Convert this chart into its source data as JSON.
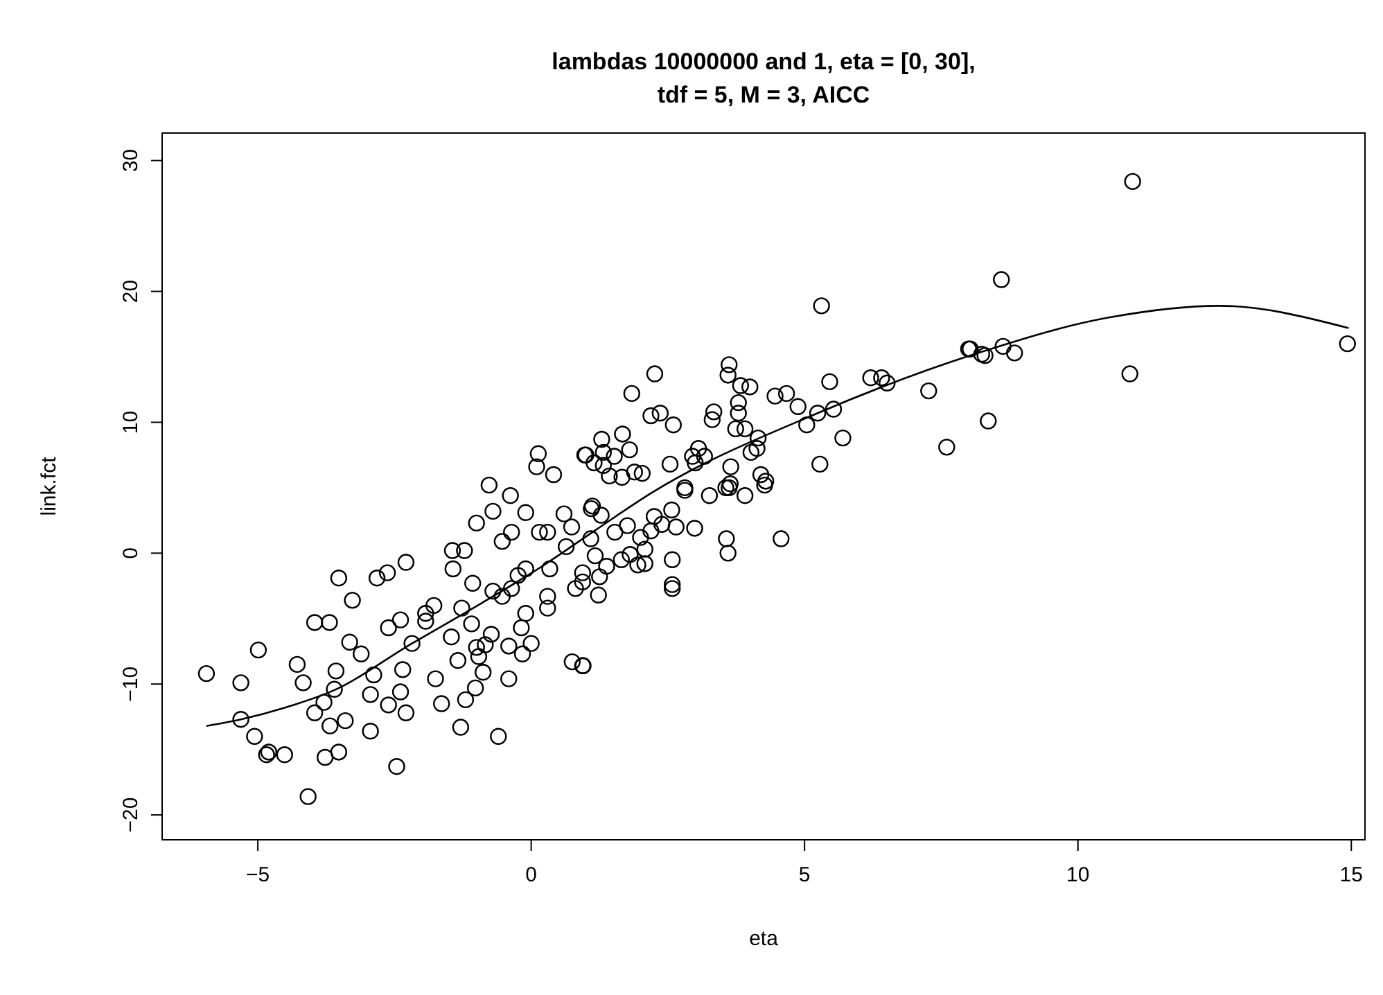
{
  "chart_data": {
    "type": "scatter",
    "title": "lambdas 10000000 and 1, eta = [0, 30],\ntdf = 5, M = 3, AICC",
    "xlabel": "eta",
    "ylabel": "link.fct",
    "xlim": [
      -6.75,
      15.25
    ],
    "ylim": [
      -21.9,
      32.1
    ],
    "xticks": [
      -5,
      0,
      5,
      10,
      15
    ],
    "yticks": [
      -20,
      -10,
      0,
      10,
      20,
      30
    ],
    "series": [
      {
        "marker": "circle",
        "color": "#000000",
        "x": [
          -5.94,
          -5.31,
          -5.31,
          -4.99,
          -5.06,
          -4.84,
          -4.8,
          -4.51,
          -4.08,
          -4.28,
          -4.17,
          -3.52,
          -3.27,
          -3.96,
          -3.69,
          -3.57,
          -3.32,
          -3.11,
          -3.6,
          -3.79,
          -3.96,
          -3.68,
          -3.4,
          -3.77,
          -3.52,
          -2.94,
          -2.46,
          -2.88,
          -2.94,
          -2.61,
          -2.35,
          -2.39,
          -2.29,
          -2.82,
          -2.63,
          -2.29,
          -2.61,
          -2.39,
          -2.18,
          -1.93,
          -1.78,
          -1.93,
          -1.75,
          -1.64,
          -1.43,
          -1.44,
          -1.22,
          -1.0,
          -1.27,
          -1.46,
          -1.34,
          -1.29,
          -1.2,
          -1.07,
          -1.09,
          -1.0,
          -0.96,
          -0.88,
          -1.02,
          -0.73,
          -0.84,
          -0.6,
          -0.41,
          -0.41,
          -0.16,
          0.0,
          -0.18,
          -0.1,
          -0.7,
          -0.53,
          -0.36,
          -0.24,
          -0.1,
          0.3,
          0.3,
          0.34,
          0.75,
          0.94,
          0.64,
          0.81,
          0.94,
          1.1,
          -0.53,
          -0.36,
          -0.38,
          -0.7,
          -0.1,
          0.15,
          0.3,
          0.6,
          0.74,
          0.13,
          0.1,
          -0.77,
          0.41,
          0.98,
          5.31,
          8.0,
          8.24,
          7.27,
          7.6,
          6.21,
          6.41,
          6.51,
          5.46,
          5.53,
          5.24,
          5.04,
          5.7,
          5.28,
          4.88,
          4.46,
          4.67,
          3.62,
          3.6,
          3.83,
          4.0,
          3.79,
          3.79,
          3.74,
          3.91,
          4.15,
          4.13,
          4.02,
          3.65,
          4.2,
          4.29,
          3.34,
          3.31,
          2.26,
          1.84,
          2.19,
          2.36,
          2.6,
          1.67,
          1.8,
          1.29,
          1.32,
          1.0,
          1.15,
          1.52,
          1.32,
          1.43,
          1.66,
          1.89,
          2.03,
          2.54,
          2.95,
          3.06,
          3.17,
          3.0,
          3.64,
          3.56,
          2.81,
          4.57,
          3.57,
          3.6,
          2.99,
          2.65,
          2.58,
          2.58,
          2.58,
          2.57,
          2.25,
          2.39,
          2.19,
          2.0,
          2.08,
          2.08,
          1.95,
          1.81,
          1.65,
          1.53,
          1.76,
          1.38,
          1.25,
          1.23,
          1.17,
          1.09,
          1.12,
          1.28,
          0.95,
          0.94,
          3.26,
          3.91,
          2.81,
          3.62,
          4.27,
          11.0,
          8.6,
          14.93,
          10.95,
          8.36,
          8.63,
          8.84,
          8.3,
          8.03
        ],
        "values": [
          -9.2,
          -9.9,
          -12.7,
          -7.4,
          -14.0,
          -15.4,
          -15.2,
          -15.4,
          -18.6,
          -8.5,
          -9.9,
          -1.9,
          -3.6,
          -5.3,
          -5.3,
          -9.0,
          -6.8,
          -7.7,
          -10.4,
          -11.4,
          -12.2,
          -13.2,
          -12.8,
          -15.6,
          -15.2,
          -13.6,
          -16.3,
          -9.3,
          -10.8,
          -11.6,
          -8.9,
          -10.6,
          -12.2,
          -1.9,
          -1.5,
          -0.7,
          -5.7,
          -5.1,
          -6.9,
          -4.6,
          -4.0,
          -5.2,
          -9.6,
          -11.5,
          -1.2,
          0.2,
          0.2,
          2.3,
          -4.2,
          -6.4,
          -8.2,
          -13.3,
          -11.2,
          -2.3,
          -5.4,
          -7.2,
          -7.9,
          -9.1,
          -10.3,
          -6.2,
          -7.0,
          -14.0,
          -9.6,
          -7.1,
          -7.7,
          -6.9,
          -5.7,
          -4.6,
          -2.9,
          -3.3,
          -2.7,
          -1.7,
          -1.2,
          -3.3,
          -4.2,
          -1.2,
          -8.3,
          -8.6,
          0.5,
          -2.7,
          -1.5,
          3.4,
          0.9,
          1.6,
          4.4,
          3.2,
          3.1,
          1.6,
          1.6,
          3.0,
          2.0,
          7.6,
          6.6,
          5.2,
          6.0,
          7.5,
          18.9,
          15.6,
          15.2,
          12.4,
          8.1,
          13.4,
          13.4,
          13.0,
          13.1,
          11.0,
          10.7,
          9.8,
          8.8,
          6.8,
          11.2,
          12.0,
          12.2,
          14.4,
          13.6,
          12.8,
          12.7,
          11.5,
          10.7,
          9.5,
          9.5,
          8.8,
          8.0,
          7.7,
          6.6,
          6.0,
          5.5,
          10.8,
          10.2,
          13.7,
          12.2,
          10.5,
          10.7,
          9.8,
          9.1,
          7.9,
          8.7,
          7.7,
          7.5,
          6.9,
          7.4,
          6.7,
          5.9,
          5.8,
          6.2,
          6.1,
          6.8,
          7.4,
          8.0,
          7.4,
          6.9,
          5.3,
          5.0,
          5.0,
          1.1,
          1.1,
          0.0,
          1.9,
          2.0,
          -0.5,
          -2.4,
          -2.7,
          3.3,
          2.8,
          2.2,
          1.7,
          1.2,
          0.3,
          -0.8,
          -0.9,
          -0.1,
          -0.5,
          1.6,
          2.1,
          -1.0,
          -1.8,
          -3.2,
          -0.2,
          1.1,
          3.6,
          2.9,
          -8.6,
          -2.2,
          4.4,
          4.4,
          4.8,
          5.0,
          5.2,
          28.4,
          20.9,
          16.0,
          13.7,
          10.1,
          15.8,
          15.3,
          15.1,
          15.6
        ]
      },
      {
        "type": "line",
        "color": "#000000",
        "x": [
          -5.94,
          -5.31,
          -4.5,
          -3.62,
          -2.18,
          -0.9,
          0.2,
          1.19,
          2.2,
          5.24,
          8.1,
          10.56,
          12.58,
          14.95
        ],
        "values": [
          -13.2,
          -12.7,
          -11.8,
          -10.5,
          -6.9,
          -3.8,
          -1.0,
          1.8,
          4.6,
          10.7,
          15.2,
          18.0,
          18.9,
          17.2
        ]
      }
    ]
  }
}
